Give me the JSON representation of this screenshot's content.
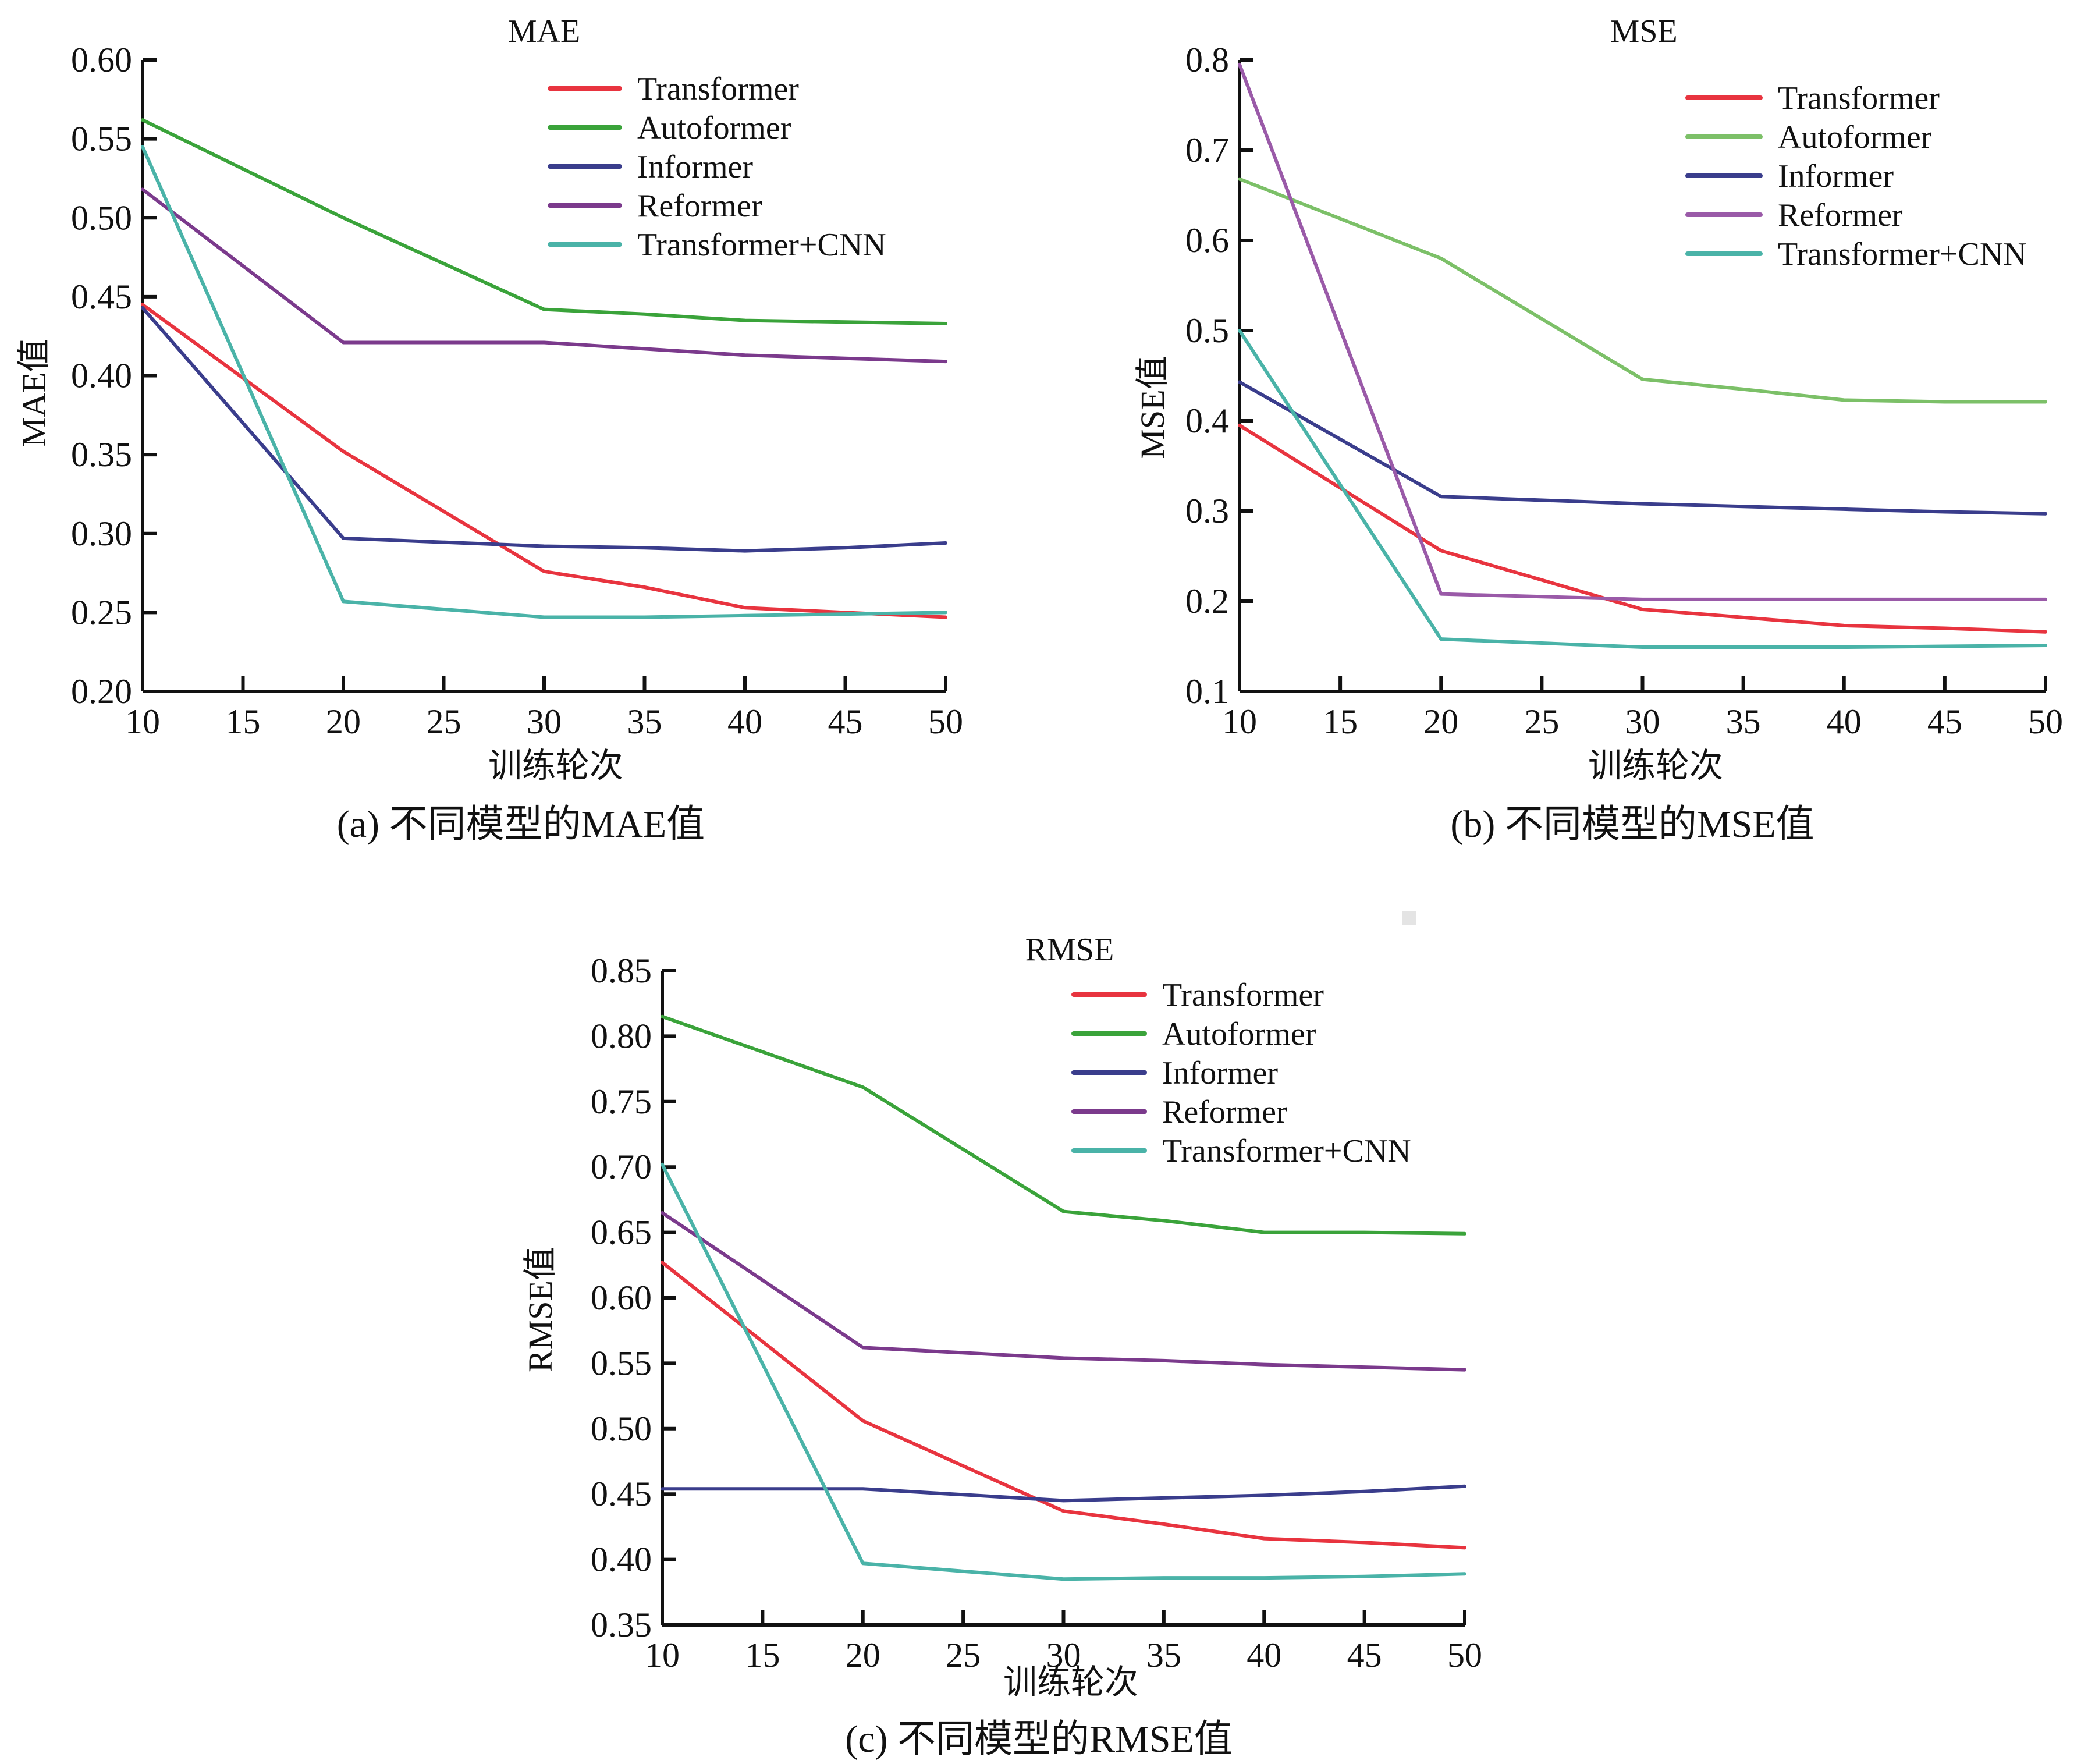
{
  "figure": {
    "series_names": [
      "Transformer",
      "Autoformer",
      "Informer",
      "Reformer",
      "Transformer+CNN"
    ],
    "series_colors": [
      "#e8343f",
      "#3aa33a",
      "#3a3d8c",
      "#7b3a8c",
      "#4ab3a8"
    ]
  },
  "chart_data": [
    {
      "id": "a",
      "type": "line",
      "title": "MAE",
      "xlabel": "训练轮次",
      "ylabel": "MAE值",
      "caption": "(a) 不同模型的MAE值",
      "xlim": [
        10,
        50
      ],
      "ylim": [
        0.2,
        0.6
      ],
      "xticks": [
        10,
        15,
        20,
        25,
        30,
        35,
        40,
        45,
        50
      ],
      "xtick_labels": [
        "10",
        "15",
        "20",
        "25",
        "30",
        "35",
        "40",
        "45",
        "50"
      ],
      "yticks": [
        0.2,
        0.25,
        0.3,
        0.35,
        0.4,
        0.45,
        0.5,
        0.55,
        0.6
      ],
      "ytick_labels": [
        "0.20",
        "0.25",
        "0.30",
        "0.35",
        "0.40",
        "0.45",
        "0.50",
        "0.55",
        "0.60"
      ],
      "grid": false,
      "legend_position": "top-right",
      "x": [
        10,
        20,
        30,
        35,
        40,
        45,
        50
      ],
      "series": [
        {
          "name": "Transformer",
          "color": "#e8343f",
          "values": [
            0.445,
            0.352,
            0.276,
            0.266,
            0.253,
            0.25,
            0.247
          ]
        },
        {
          "name": "Autoformer",
          "color": "#3aa33a",
          "values": [
            0.562,
            0.5,
            0.442,
            0.439,
            0.435,
            0.434,
            0.433
          ]
        },
        {
          "name": "Informer",
          "color": "#3a3d8c",
          "values": [
            0.443,
            0.297,
            0.292,
            0.291,
            0.289,
            0.291,
            0.294
          ]
        },
        {
          "name": "Reformer",
          "color": "#7b3a8c",
          "values": [
            0.518,
            0.421,
            0.421,
            0.417,
            0.413,
            0.411,
            0.409
          ]
        },
        {
          "name": "Transformer+CNN",
          "color": "#4ab3a8",
          "values": [
            0.545,
            0.257,
            0.247,
            0.247,
            0.248,
            0.249,
            0.25
          ]
        }
      ]
    },
    {
      "id": "b",
      "type": "line",
      "title": "MSE",
      "xlabel": "训练轮次",
      "ylabel": "MSE值",
      "caption": "(b) 不同模型的MSE值",
      "xlim": [
        10,
        50
      ],
      "ylim": [
        0.1,
        0.8
      ],
      "xticks": [
        10,
        15,
        20,
        25,
        30,
        35,
        40,
        45,
        50
      ],
      "xtick_labels": [
        "10",
        "15",
        "20",
        "25",
        "30",
        "35",
        "40",
        "45",
        "50"
      ],
      "yticks": [
        0.1,
        0.2,
        0.3,
        0.4,
        0.5,
        0.6,
        0.7,
        0.8
      ],
      "ytick_labels": [
        "0.1",
        "0.2",
        "0.3",
        "0.4",
        "0.5",
        "0.6",
        "0.7",
        "0.8"
      ],
      "grid": false,
      "legend_position": "top-right",
      "x": [
        10,
        20,
        30,
        35,
        40,
        45,
        50
      ],
      "series": [
        {
          "name": "Transformer",
          "color": "#e8343f",
          "values": [
            0.395,
            0.256,
            0.191,
            0.182,
            0.173,
            0.17,
            0.166
          ]
        },
        {
          "name": "Autoformer",
          "color": "#7cc068",
          "values": [
            0.668,
            0.58,
            0.446,
            0.435,
            0.423,
            0.421,
            0.421
          ]
        },
        {
          "name": "Informer",
          "color": "#3a3d8c",
          "values": [
            0.443,
            0.316,
            0.308,
            0.305,
            0.302,
            0.299,
            0.297
          ]
        },
        {
          "name": "Reformer",
          "color": "#9a5aa8",
          "values": [
            0.795,
            0.208,
            0.202,
            0.202,
            0.202,
            0.202,
            0.202
          ]
        },
        {
          "name": "Transformer+CNN",
          "color": "#4ab3a8",
          "values": [
            0.5,
            0.158,
            0.149,
            0.149,
            0.149,
            0.15,
            0.151
          ]
        }
      ]
    },
    {
      "id": "c",
      "type": "line",
      "title": "RMSE",
      "xlabel": "训练轮次",
      "ylabel": "RMSE值",
      "caption": "(c) 不同模型的RMSE值",
      "xlim": [
        10,
        50
      ],
      "ylim": [
        0.35,
        0.85
      ],
      "xticks": [
        10,
        15,
        20,
        25,
        30,
        35,
        40,
        45,
        50
      ],
      "xtick_labels": [
        "10",
        "15",
        "20",
        "25",
        "30",
        "35",
        "40",
        "45",
        "50"
      ],
      "yticks": [
        0.35,
        0.4,
        0.45,
        0.5,
        0.55,
        0.6,
        0.65,
        0.7,
        0.75,
        0.8,
        0.85
      ],
      "ytick_labels": [
        "0.35",
        "0.40",
        "0.45",
        "0.50",
        "0.55",
        "0.60",
        "0.65",
        "0.70",
        "0.75",
        "0.80",
        "0.85"
      ],
      "grid": false,
      "legend_position": "top-right",
      "x": [
        10,
        20,
        30,
        35,
        40,
        45,
        50
      ],
      "series": [
        {
          "name": "Transformer",
          "color": "#e8343f",
          "values": [
            0.627,
            0.506,
            0.437,
            0.427,
            0.416,
            0.413,
            0.409
          ]
        },
        {
          "name": "Autoformer",
          "color": "#3aa33a",
          "values": [
            0.815,
            0.761,
            0.666,
            0.659,
            0.65,
            0.65,
            0.649
          ]
        },
        {
          "name": "Informer",
          "color": "#3a3d8c",
          "values": [
            0.454,
            0.454,
            0.445,
            0.447,
            0.449,
            0.452,
            0.456
          ]
        },
        {
          "name": "Reformer",
          "color": "#7b3a8c",
          "values": [
            0.665,
            0.562,
            0.554,
            0.552,
            0.549,
            0.547,
            0.545
          ]
        },
        {
          "name": "Transformer+CNN",
          "color": "#4ab3a8",
          "values": [
            0.702,
            0.397,
            0.385,
            0.386,
            0.386,
            0.387,
            0.389
          ]
        }
      ]
    }
  ]
}
